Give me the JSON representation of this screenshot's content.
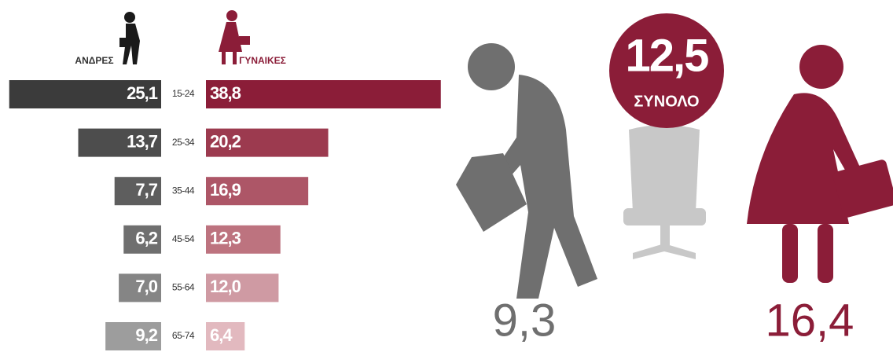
{
  "chart_data": {
    "type": "bar",
    "categories": [
      "15-24",
      "25-34",
      "35-44",
      "45-54",
      "55-64",
      "65-74"
    ],
    "series": [
      {
        "name": "ΑΝΔΡΕΣ",
        "values": [
          25.1,
          13.7,
          7.7,
          6.2,
          7.0,
          9.2
        ],
        "value_labels": [
          "25,1",
          "13,7",
          "7,7",
          "6,2",
          "7,0",
          "9,2"
        ],
        "colors": [
          "#3b3b3b",
          "#4d4d4d",
          "#5e5e5e",
          "#6f6f6f",
          "#858585",
          "#9d9d9d"
        ]
      },
      {
        "name": "ΓΥΝΑΙΚΕΣ",
        "values": [
          38.8,
          20.2,
          16.9,
          12.3,
          12.0,
          6.4
        ],
        "value_labels": [
          "38,8",
          "20,2",
          "16,9",
          "12,3",
          "12,0",
          "6,4"
        ],
        "colors": [
          "#8b1d38",
          "#9c3a4f",
          "#ad5667",
          "#bd737f",
          "#cf9aa3",
          "#e2b9bf"
        ]
      }
    ],
    "total": {
      "value": 12.5,
      "label": "12,5",
      "caption": "ΣΥΝΟΛΟ",
      "color": "#8b1d38"
    },
    "men_total": {
      "value": 9.3,
      "label": "9,3",
      "color": "#6f6f6f"
    },
    "women_total": {
      "value": 16.4,
      "label": "16,4",
      "color": "#8b1d38"
    }
  }
}
